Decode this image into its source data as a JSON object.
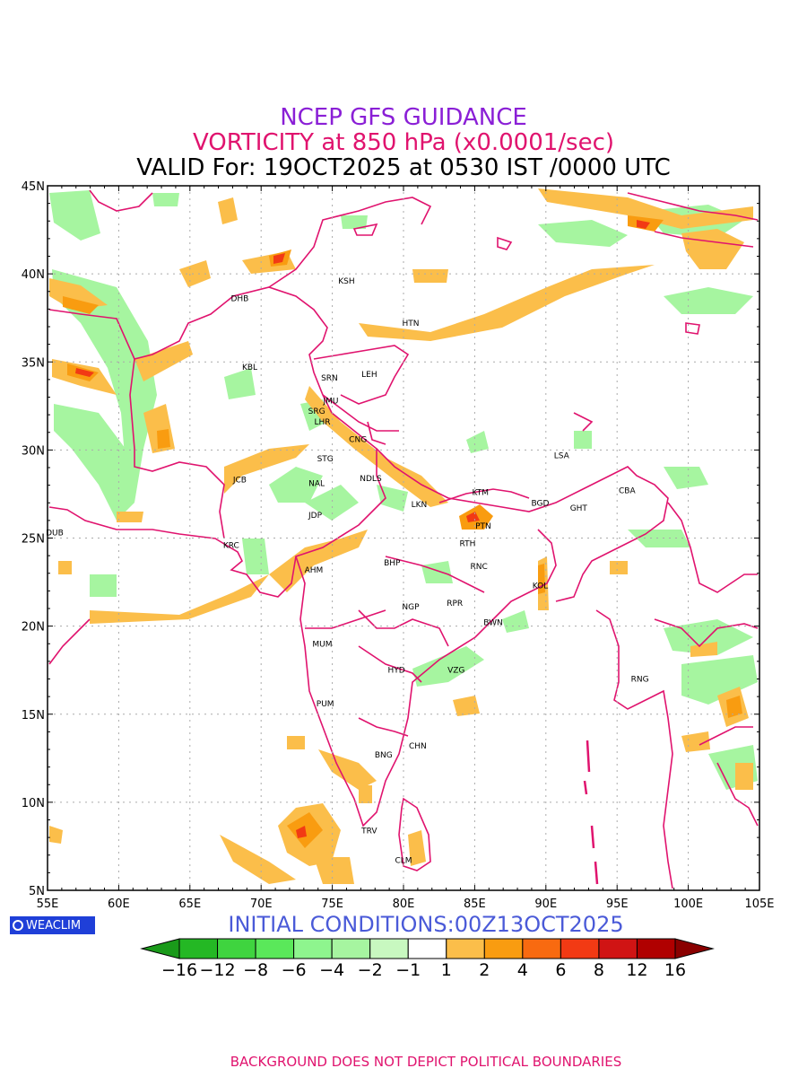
{
  "titles": {
    "line1": "NCEP GFS GUIDANCE",
    "line2": "VORTICITY at 850 hPa (x0.0001/sec)",
    "line3": "VALID For: 19OCT2025 at 0530 IST /0000 UTC"
  },
  "axes": {
    "lat_labels": [
      "45N",
      "40N",
      "35N",
      "30N",
      "25N",
      "20N",
      "15N",
      "10N",
      "5N"
    ],
    "lon_labels": [
      "55E",
      "60E",
      "65E",
      "70E",
      "75E",
      "80E",
      "85E",
      "90E",
      "95E",
      "100E",
      "105E"
    ]
  },
  "cities": [
    {
      "code": "KSH",
      "lon": 76.0,
      "lat": 39.6
    },
    {
      "code": "DHB",
      "lon": 68.5,
      "lat": 38.6
    },
    {
      "code": "HTN",
      "lon": 80.5,
      "lat": 37.2
    },
    {
      "code": "KBL",
      "lon": 69.2,
      "lat": 34.7
    },
    {
      "code": "SRN",
      "lon": 74.8,
      "lat": 34.1
    },
    {
      "code": "LEH",
      "lon": 77.6,
      "lat": 34.3
    },
    {
      "code": "JMU",
      "lon": 74.9,
      "lat": 32.8
    },
    {
      "code": "SRG",
      "lon": 73.9,
      "lat": 32.2
    },
    {
      "code": "LHR",
      "lon": 74.3,
      "lat": 31.6
    },
    {
      "code": "CNG",
      "lon": 76.8,
      "lat": 30.6
    },
    {
      "code": "LSA",
      "lon": 91.1,
      "lat": 29.7
    },
    {
      "code": "STG",
      "lon": 74.5,
      "lat": 29.5
    },
    {
      "code": "JCB",
      "lon": 68.5,
      "lat": 28.3
    },
    {
      "code": "NAL",
      "lon": 73.9,
      "lat": 28.1
    },
    {
      "code": "NDLS",
      "lon": 77.7,
      "lat": 28.4
    },
    {
      "code": "KTM",
      "lon": 85.4,
      "lat": 27.6
    },
    {
      "code": "CBA",
      "lon": 95.7,
      "lat": 27.7
    },
    {
      "code": "BGD",
      "lon": 89.6,
      "lat": 27.0
    },
    {
      "code": "GHT",
      "lon": 92.3,
      "lat": 26.7
    },
    {
      "code": "LKN",
      "lon": 81.1,
      "lat": 26.9
    },
    {
      "code": "JDP",
      "lon": 73.8,
      "lat": 26.3
    },
    {
      "code": "PTN",
      "lon": 85.6,
      "lat": 25.7
    },
    {
      "code": "DUB",
      "lon": 55.5,
      "lat": 25.3
    },
    {
      "code": "RTH",
      "lon": 84.5,
      "lat": 24.7
    },
    {
      "code": "KRC",
      "lon": 67.9,
      "lat": 24.6
    },
    {
      "code": "RNC",
      "lon": 85.3,
      "lat": 23.4
    },
    {
      "code": "AHM",
      "lon": 73.7,
      "lat": 23.2
    },
    {
      "code": "BHP",
      "lon": 79.2,
      "lat": 23.6
    },
    {
      "code": "KOL",
      "lon": 89.6,
      "lat": 22.3
    },
    {
      "code": "NGP",
      "lon": 80.5,
      "lat": 21.1
    },
    {
      "code": "RPR",
      "lon": 83.6,
      "lat": 21.3
    },
    {
      "code": "BWN",
      "lon": 86.3,
      "lat": 20.2
    },
    {
      "code": "MUM",
      "lon": 74.3,
      "lat": 19.0
    },
    {
      "code": "HYD",
      "lon": 79.5,
      "lat": 17.5
    },
    {
      "code": "VZG",
      "lon": 83.7,
      "lat": 17.5
    },
    {
      "code": "RNG",
      "lon": 96.6,
      "lat": 17.0
    },
    {
      "code": "PUM",
      "lon": 74.5,
      "lat": 15.6
    },
    {
      "code": "CHN",
      "lon": 81.0,
      "lat": 13.2
    },
    {
      "code": "BNG",
      "lon": 78.6,
      "lat": 12.7
    },
    {
      "code": "TRV",
      "lon": 77.6,
      "lat": 8.4
    },
    {
      "code": "CLM",
      "lon": 80.0,
      "lat": 6.7
    }
  ],
  "legend": {
    "levels": [
      "-16",
      "-12",
      "-8",
      "-6",
      "-4",
      "-2",
      "-1",
      "1",
      "2",
      "4",
      "6",
      "8",
      "12",
      "16"
    ],
    "colors": [
      "#1a9a1a",
      "#24b824",
      "#3fd43f",
      "#5ae85a",
      "#8ef58e",
      "#a6f5a0",
      "#c8f8c0",
      "#ffffff",
      "#fbbe4a",
      "#f99c10",
      "#f86a10",
      "#f23a14",
      "#d01414",
      "#b00000",
      "#8a0000"
    ]
  },
  "logo_text": "WEACLIM",
  "init_text": "INITIAL CONDITIONS:00Z13OCT2025",
  "footer_text": "BACKGROUND DOES NOT DEPICT POLITICAL BOUNDARIES",
  "colors": {
    "boundary": "#e0136e",
    "title_purple": "#8a1fd6",
    "title_pink": "#e0136e",
    "init_blue": "#4a5ad8",
    "logo_bg": "#1f3fd8"
  }
}
